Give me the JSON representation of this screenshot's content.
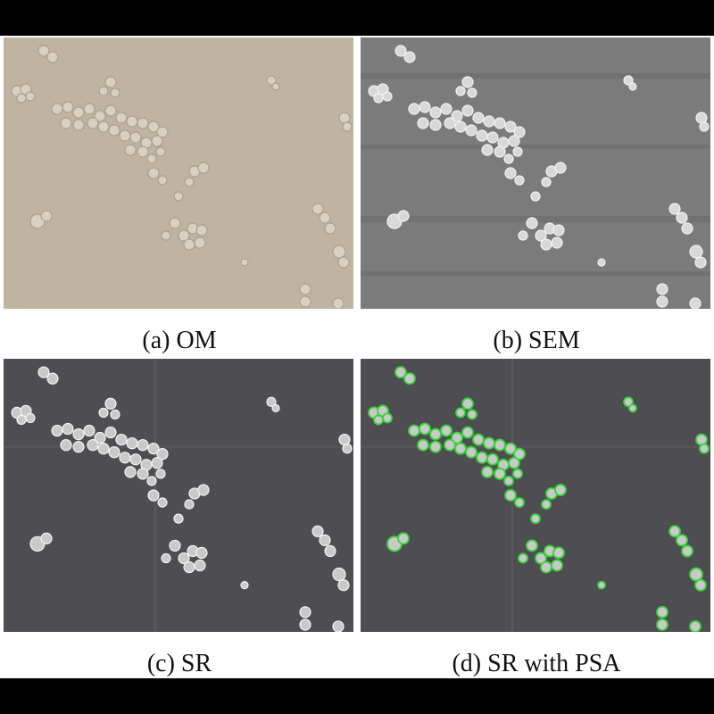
{
  "figure": {
    "panels": [
      {
        "label": "(a) OM",
        "style": "optical micrograph",
        "colors": {
          "bg": "#bfb4a2",
          "particle": "#d9d0c1",
          "edge": "#aaa08e"
        }
      },
      {
        "label": "(b) SEM",
        "style": "scanning electron micrograph",
        "colors": {
          "bg": "#7b7b7b",
          "particle": "#d8d8d8",
          "edge": "#f2f2f2"
        }
      },
      {
        "label": "(c) SR",
        "style": "super-resolution image",
        "colors": {
          "bg": "#4d4d52",
          "particle": "#c9c9c9",
          "edge": "#f4f4f4"
        }
      },
      {
        "label": "(d) SR with PSA",
        "style": "super-resolution with particle segmentation overlay",
        "colors": {
          "bg": "#4d4d52",
          "particle": "#c9c9c9",
          "edge": "#38d43a"
        }
      }
    ]
  }
}
